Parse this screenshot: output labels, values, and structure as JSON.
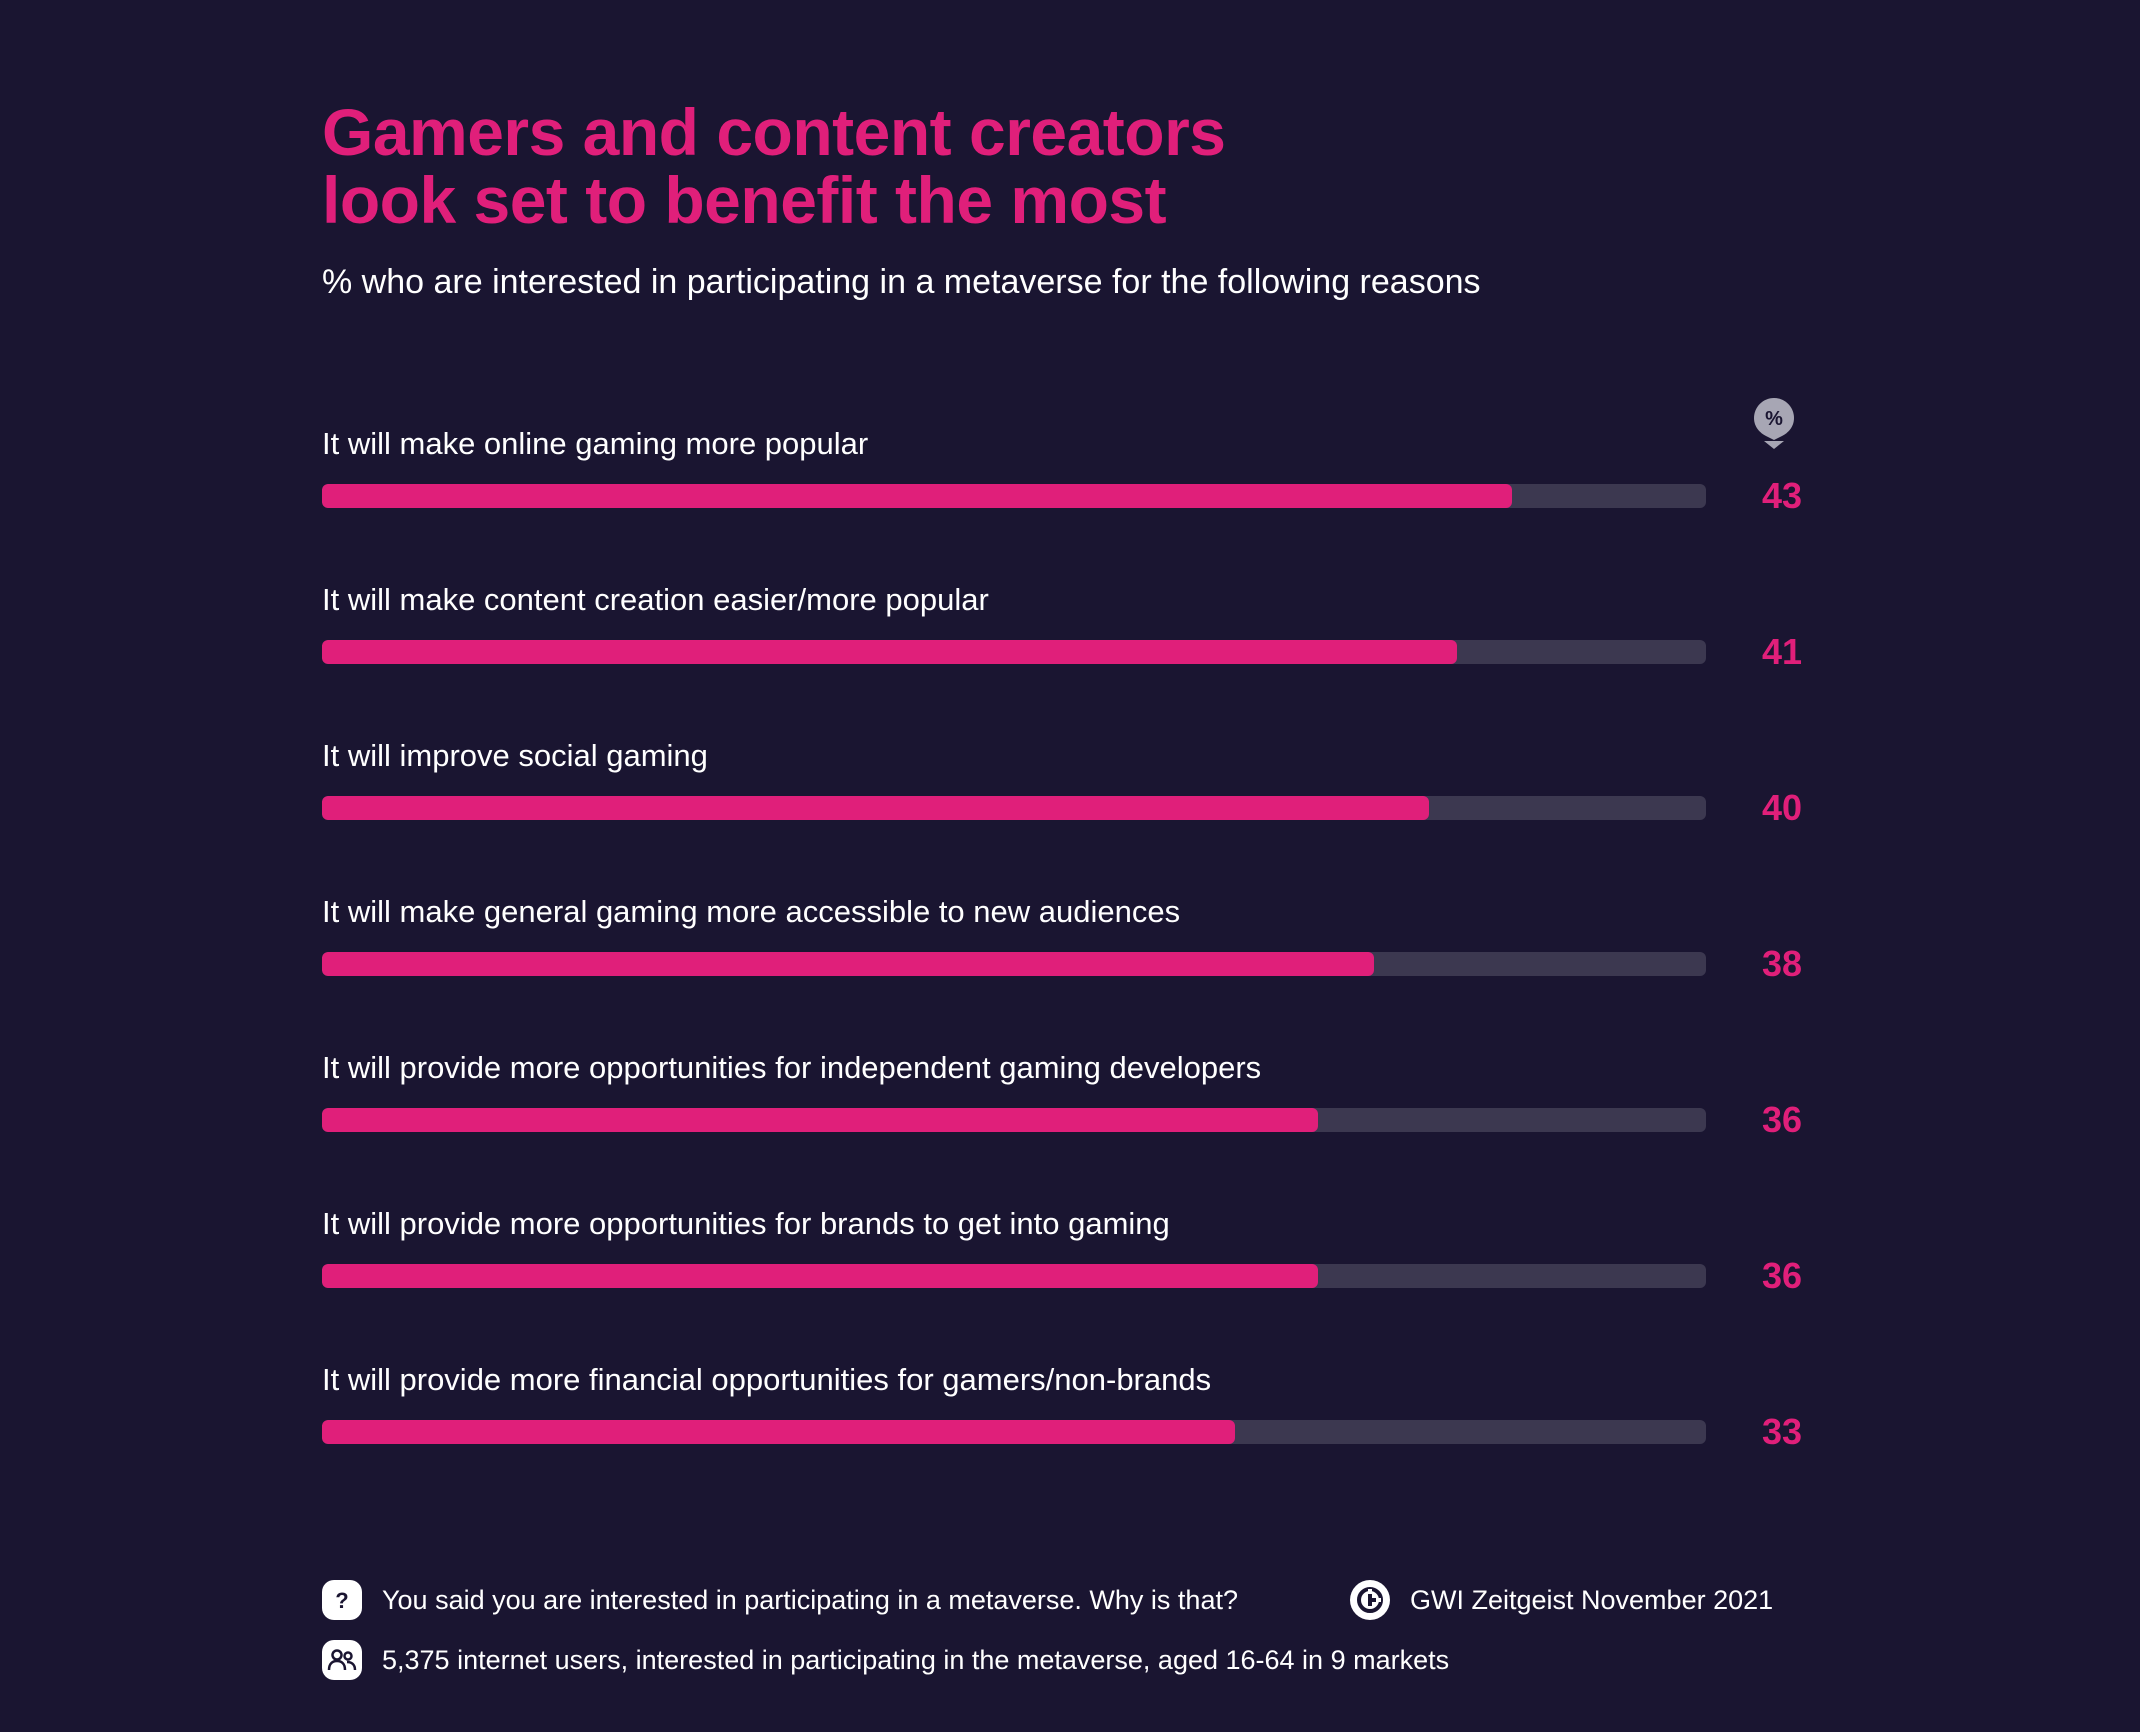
{
  "header": {
    "title_line1": "Gamers and content creators",
    "title_line2": "look set to benefit the most",
    "subtitle": "% who are interested in participating in a metaverse for the following reasons",
    "percent_symbol": "%"
  },
  "chart_data": {
    "type": "bar",
    "orientation": "horizontal",
    "categories": [
      "It will make online gaming more popular",
      "It will make content creation easier/more popular",
      "It will improve social gaming",
      "It will make general gaming more accessible to new audiences",
      "It will provide more opportunities for independent gaming developers",
      "It will provide more opportunities for brands to get into gaming",
      "It will provide more financial opportunities for gamers/non-brands"
    ],
    "values": [
      43,
      41,
      40,
      38,
      36,
      36,
      33
    ],
    "xlim": [
      0,
      50
    ],
    "grid": false,
    "colors": {
      "bar": "#e01f7a",
      "track": "#3c3850",
      "background": "#1a1531"
    }
  },
  "footer": {
    "question": "You said you are interested in participating in a metaverse. Why is that?",
    "question_icon": "question-icon",
    "sample": "5,375 internet users, interested in participating in the metaverse, aged 16-64 in 9 markets",
    "sample_icon": "people-icon",
    "source": "GWI Zeitgeist November 2021",
    "source_icon": "gwi-logo-icon"
  }
}
